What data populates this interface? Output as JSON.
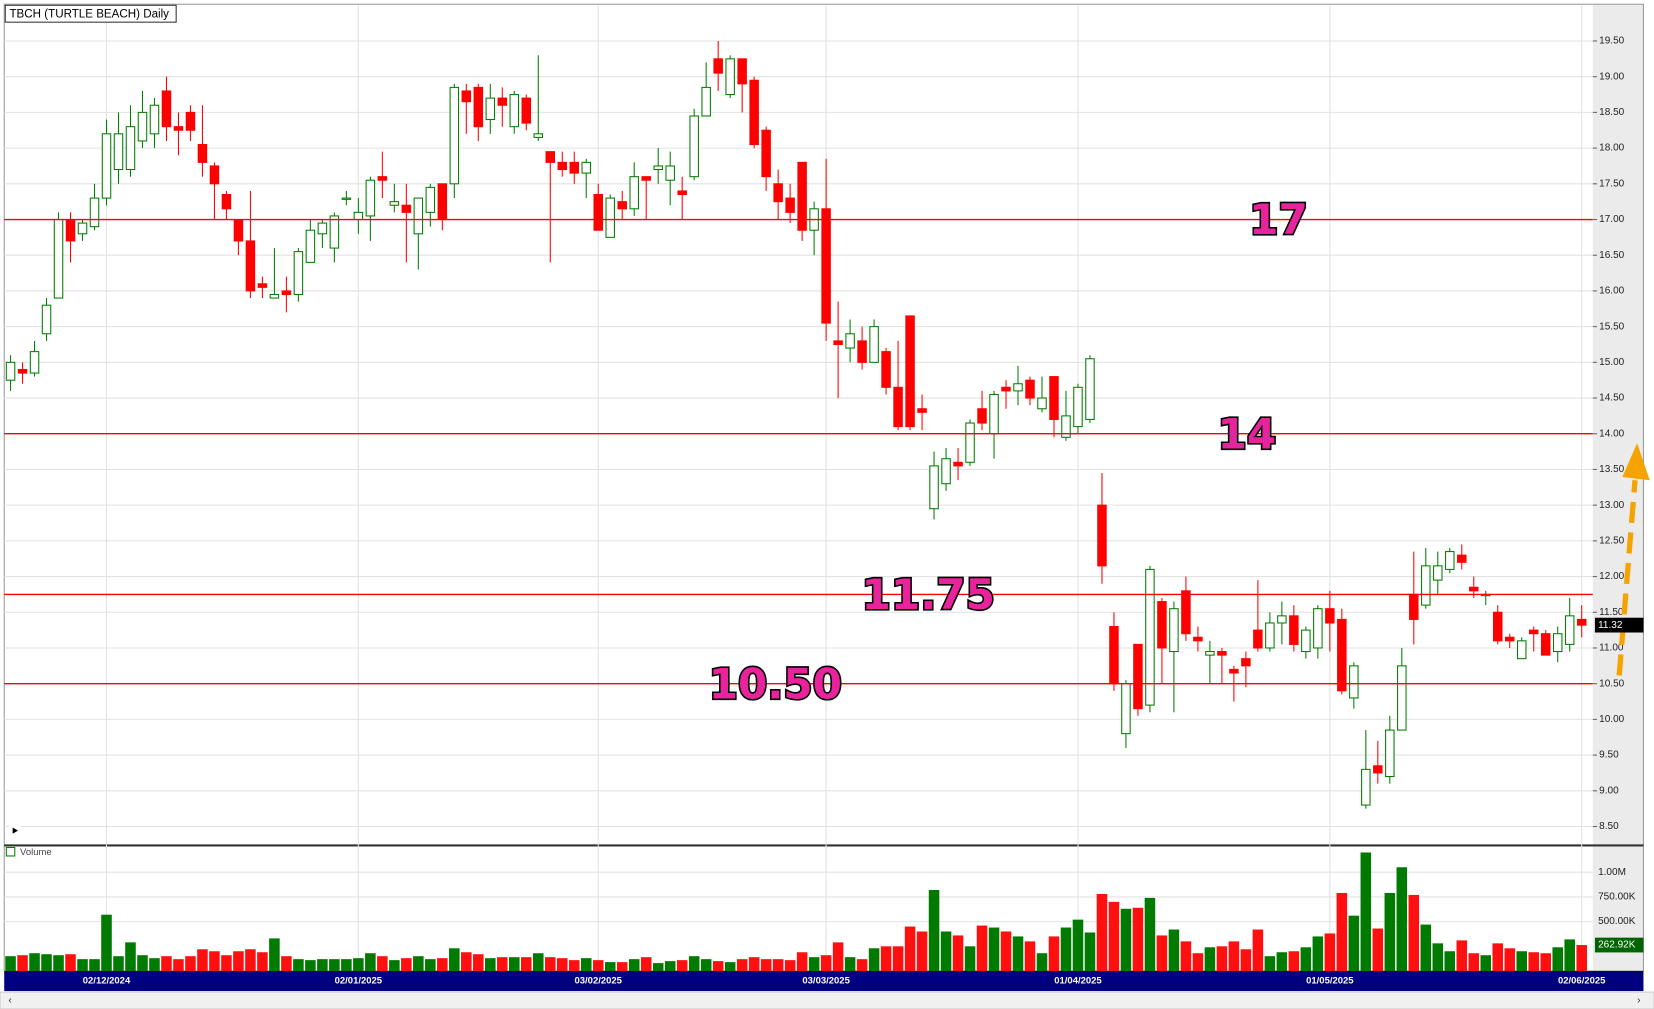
{
  "chart_data": [
    {
      "type": "candlestick",
      "title": "TBCH (TURTLE BEACH) Daily",
      "up_color": "#008000",
      "down_color": "#ff0000",
      "open": [
        14.75,
        14.9,
        14.85,
        15.4,
        15.9,
        17.0,
        16.8,
        16.9,
        17.3,
        17.7,
        17.7,
        18.1,
        18.2,
        18.8,
        18.3,
        18.5,
        18.05,
        17.75,
        17.35,
        17.0,
        16.7,
        16.1,
        15.9,
        16.0,
        15.95,
        16.4,
        16.8,
        16.6,
        17.3,
        17.0,
        17.05,
        17.6,
        17.2,
        17.2,
        16.8,
        17.1,
        17.5,
        17.5,
        18.8,
        18.85,
        18.4,
        18.7,
        18.3,
        18.7,
        18.15,
        17.95,
        17.8,
        17.8,
        17.65,
        17.35,
        16.75,
        17.25,
        17.15,
        17.6,
        17.7,
        17.55,
        17.4,
        17.6,
        18.45,
        19.25,
        18.75,
        19.25,
        18.95,
        18.25,
        17.5,
        17.3,
        17.8,
        16.85,
        17.15,
        15.3,
        15.2,
        15.3,
        15.0,
        15.15,
        14.65,
        15.65,
        14.35,
        12.95,
        13.3,
        13.6,
        13.6,
        14.35,
        14.0,
        14.65,
        14.6,
        14.75,
        14.35,
        14.8,
        13.95,
        14.1,
        14.2,
        13.0,
        11.3,
        9.8,
        11.05,
        10.2,
        11.65,
        10.95,
        11.8,
        11.15,
        10.9,
        10.95,
        10.7,
        10.85,
        11.25,
        11.0,
        11.35,
        11.45,
        10.95,
        11.0,
        11.55,
        11.4,
        10.3,
        8.8,
        9.35,
        9.2,
        9.85,
        11.75,
        11.6,
        11.95,
        12.1,
        12.3,
        11.85,
        11.75,
        11.5,
        11.15,
        10.85,
        11.25,
        11.2,
        10.95,
        11.05,
        11.4
      ],
      "high": [
        15.1,
        15.0,
        15.3,
        15.9,
        17.1,
        17.1,
        17.0,
        17.5,
        18.4,
        18.5,
        18.6,
        18.8,
        18.7,
        19.0,
        18.5,
        18.6,
        18.6,
        17.8,
        17.4,
        17.0,
        17.4,
        16.2,
        16.6,
        16.2,
        16.6,
        17.0,
        17.0,
        17.1,
        17.4,
        17.3,
        17.6,
        17.95,
        17.5,
        17.5,
        17.3,
        17.5,
        17.5,
        18.9,
        18.9,
        18.9,
        18.9,
        18.85,
        18.8,
        18.75,
        19.3,
        17.95,
        17.95,
        17.95,
        17.85,
        17.5,
        17.35,
        17.4,
        17.8,
        17.6,
        18.0,
        17.95,
        17.6,
        18.55,
        19.2,
        19.5,
        19.3,
        19.25,
        19.0,
        18.3,
        17.7,
        17.5,
        17.8,
        17.25,
        17.85,
        15.85,
        15.6,
        15.5,
        15.6,
        15.2,
        15.3,
        15.65,
        14.55,
        13.75,
        13.8,
        13.8,
        14.2,
        14.6,
        14.6,
        14.75,
        14.95,
        14.8,
        14.8,
        14.8,
        14.6,
        14.7,
        15.1,
        13.45,
        11.5,
        10.55,
        11.05,
        12.15,
        11.7,
        11.65,
        12.0,
        11.3,
        11.1,
        11.0,
        10.75,
        10.95,
        11.95,
        11.5,
        11.65,
        11.6,
        11.3,
        11.6,
        11.8,
        11.55,
        10.8,
        9.85,
        9.7,
        10.05,
        11.0,
        12.35,
        12.4,
        12.35,
        12.4,
        12.45,
        12.0,
        11.8,
        11.6,
        11.2,
        11.15,
        11.3,
        11.25,
        11.3,
        11.7,
        11.6
      ],
      "low": [
        14.6,
        14.7,
        14.8,
        15.3,
        15.9,
        16.4,
        16.7,
        16.85,
        17.2,
        17.5,
        17.6,
        18.0,
        18.0,
        18.1,
        17.9,
        18.1,
        17.6,
        17.0,
        17.0,
        16.5,
        15.9,
        15.9,
        15.9,
        15.7,
        15.85,
        16.4,
        16.6,
        16.4,
        17.2,
        16.8,
        16.7,
        17.3,
        17.1,
        16.4,
        16.3,
        16.9,
        16.85,
        17.3,
        18.2,
        18.1,
        18.2,
        18.3,
        18.2,
        18.25,
        18.1,
        16.4,
        17.6,
        17.5,
        17.3,
        16.85,
        16.75,
        17.0,
        17.05,
        17.0,
        17.5,
        17.2,
        17.0,
        17.55,
        18.45,
        18.8,
        18.7,
        18.5,
        18.0,
        17.4,
        17.0,
        16.95,
        16.7,
        16.5,
        15.3,
        14.5,
        15.0,
        14.9,
        15.0,
        14.55,
        14.05,
        14.05,
        14.05,
        12.8,
        13.2,
        13.35,
        13.55,
        14.05,
        13.65,
        14.35,
        14.4,
        14.4,
        14.3,
        13.95,
        13.9,
        14.0,
        14.15,
        11.9,
        10.4,
        9.6,
        10.05,
        10.1,
        10.5,
        10.1,
        11.1,
        10.95,
        10.5,
        10.5,
        10.25,
        10.45,
        10.95,
        10.95,
        11.05,
        10.95,
        10.85,
        10.85,
        10.95,
        10.35,
        10.15,
        8.75,
        9.1,
        9.1,
        9.85,
        11.05,
        11.55,
        11.75,
        12.05,
        12.1,
        11.7,
        11.6,
        11.05,
        11.0,
        10.85,
        10.95,
        10.9,
        10.8,
        10.95,
        11.15
      ],
      "close": [
        15.0,
        14.85,
        15.15,
        15.8,
        17.0,
        16.7,
        16.95,
        17.3,
        18.2,
        18.2,
        18.3,
        18.5,
        18.6,
        18.3,
        18.25,
        18.25,
        17.8,
        17.5,
        17.15,
        16.7,
        16.0,
        16.05,
        15.95,
        15.95,
        16.55,
        16.85,
        16.95,
        17.05,
        17.3,
        17.1,
        17.55,
        17.55,
        17.25,
        17.1,
        17.3,
        17.45,
        17.0,
        18.85,
        18.65,
        18.3,
        18.7,
        18.6,
        18.75,
        18.35,
        18.2,
        17.8,
        17.7,
        17.65,
        17.8,
        16.85,
        17.3,
        17.15,
        17.6,
        17.55,
        17.75,
        17.75,
        17.35,
        18.45,
        18.85,
        19.05,
        19.25,
        18.9,
        18.05,
        17.6,
        17.25,
        17.1,
        16.85,
        17.15,
        15.55,
        15.25,
        15.4,
        15.0,
        15.5,
        14.65,
        14.1,
        14.1,
        14.3,
        13.55,
        13.65,
        13.55,
        14.15,
        14.15,
        14.55,
        14.6,
        14.7,
        14.5,
        14.5,
        14.2,
        14.25,
        14.65,
        15.05,
        12.15,
        10.5,
        10.5,
        10.15,
        12.1,
        11.0,
        11.55,
        11.2,
        11.1,
        10.95,
        10.9,
        10.65,
        10.75,
        11.0,
        11.35,
        11.45,
        11.05,
        11.25,
        11.55,
        11.35,
        10.4,
        10.75,
        9.3,
        9.25,
        9.85,
        10.75,
        11.4,
        12.15,
        12.15,
        12.35,
        12.2,
        11.8,
        11.75,
        11.1,
        11.1,
        11.1,
        11.2,
        10.9,
        11.2,
        11.45,
        11.32
      ],
      "last_price": 11.32,
      "ylim": [
        8.25,
        20
      ],
      "yticks": [
        {
          "value": 19.5,
          "label": "19.50"
        },
        {
          "value": 19,
          "label": "19.00"
        },
        {
          "value": 18.5,
          "label": "18.50"
        },
        {
          "value": 18,
          "label": "18.00"
        },
        {
          "value": 17.5,
          "label": "17.50"
        },
        {
          "value": 17,
          "label": "17.00"
        },
        {
          "value": 16.5,
          "label": "16.50"
        },
        {
          "value": 16,
          "label": "16.00"
        },
        {
          "value": 15.5,
          "label": "15.50"
        },
        {
          "value": 15,
          "label": "15.00"
        },
        {
          "value": 14.5,
          "label": "14.50"
        },
        {
          "value": 14,
          "label": "14.00"
        },
        {
          "value": 13.5,
          "label": "13.50"
        },
        {
          "value": 13,
          "label": "13.00"
        },
        {
          "value": 12.5,
          "label": "12.50"
        },
        {
          "value": 12,
          "label": "12.00"
        },
        {
          "value": 11.5,
          "label": "11.50"
        },
        {
          "value": 11,
          "label": "11.00"
        },
        {
          "value": 10.5,
          "label": "10.50"
        },
        {
          "value": 10,
          "label": "10.00"
        },
        {
          "value": 9.5,
          "label": "9.50"
        },
        {
          "value": 9,
          "label": "9.00"
        },
        {
          "value": 8.5,
          "label": "8.50"
        }
      ],
      "xticks": [
        {
          "value": 8,
          "label": "02/12/2024"
        },
        {
          "value": 29,
          "label": "02/01/2025"
        },
        {
          "value": 49,
          "label": "03/02/2025"
        },
        {
          "value": 68,
          "label": "03/03/2025"
        },
        {
          "value": 89,
          "label": "01/04/2025"
        },
        {
          "value": 110,
          "label": "01/05/2025"
        },
        {
          "value": 131,
          "label": "02/06/2025"
        }
      ],
      "levels": [
        {
          "value": 17,
          "label": "17"
        },
        {
          "value": 14,
          "label": "14"
        },
        {
          "value": 11.75,
          "label": "11.75"
        },
        {
          "value": 10.5,
          "label": "10.50"
        }
      ],
      "level_color": "#ff0000",
      "grid": true
    },
    {
      "type": "bar",
      "legend": "Volume",
      "values": [
        150000,
        160000,
        180000,
        170000,
        160000,
        170000,
        120000,
        120000,
        570000,
        150000,
        290000,
        160000,
        130000,
        150000,
        120000,
        150000,
        220000,
        200000,
        160000,
        200000,
        220000,
        190000,
        330000,
        150000,
        120000,
        110000,
        120000,
        120000,
        120000,
        130000,
        180000,
        150000,
        110000,
        130000,
        150000,
        120000,
        130000,
        230000,
        190000,
        170000,
        130000,
        140000,
        140000,
        140000,
        180000,
        140000,
        130000,
        110000,
        130000,
        110000,
        90000,
        90000,
        120000,
        140000,
        80000,
        100000,
        110000,
        150000,
        120000,
        100000,
        90000,
        120000,
        140000,
        120000,
        120000,
        110000,
        190000,
        140000,
        160000,
        290000,
        140000,
        120000,
        230000,
        250000,
        250000,
        450000,
        400000,
        820000,
        400000,
        360000,
        250000,
        460000,
        440000,
        400000,
        350000,
        300000,
        180000,
        350000,
        440000,
        520000,
        390000,
        780000,
        700000,
        630000,
        640000,
        740000,
        360000,
        420000,
        300000,
        180000,
        240000,
        250000,
        300000,
        220000,
        420000,
        150000,
        190000,
        200000,
        240000,
        350000,
        380000,
        790000,
        560000,
        1200000,
        430000,
        790000,
        1050000,
        770000,
        470000,
        280000,
        200000,
        310000,
        180000,
        160000,
        280000,
        230000,
        200000,
        190000,
        180000,
        240000,
        320000,
        262920
      ],
      "last_value": {
        "value": 262920,
        "label": "262.92K"
      },
      "ylim": [
        0,
        1250000
      ],
      "yticks": [
        {
          "value": 1000000,
          "label": "1.00M"
        },
        {
          "value": 750000,
          "label": "750.00K"
        },
        {
          "value": 500000,
          "label": "500.00K"
        }
      ]
    }
  ]
}
